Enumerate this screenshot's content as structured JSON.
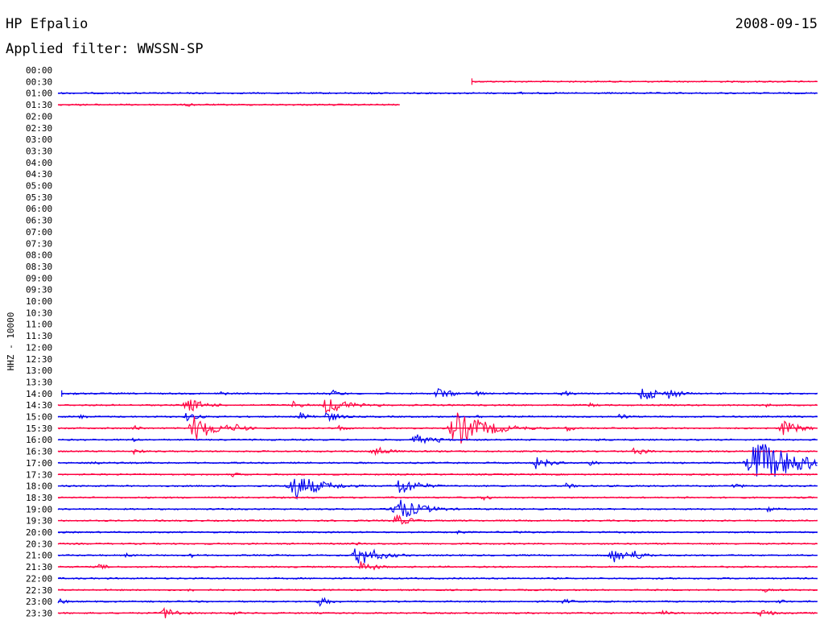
{
  "header": {
    "station": "HP Efpalio",
    "date": "2008-09-15",
    "filter": "Applied filter: WWSSN-SP"
  },
  "chart_data": {
    "type": "line",
    "ylabel": "HHZ - 10000",
    "colors": {
      "even": "#0000ee",
      "odd": "#ff0040"
    },
    "rows": [
      {
        "time": "00:00",
        "start": null,
        "end": null,
        "events": []
      },
      {
        "time": "00:30",
        "start": 0.545,
        "end": 1.0,
        "events": [
          [
            0.94,
            1
          ]
        ]
      },
      {
        "time": "01:00",
        "start": 0.0,
        "end": 1.0,
        "events": [
          [
            0.14,
            1
          ],
          [
            0.41,
            2
          ],
          [
            0.61,
            2
          ],
          [
            0.99,
            1
          ]
        ]
      },
      {
        "time": "01:30",
        "start": 0.0,
        "end": 0.45,
        "events": [
          [
            0.17,
            3
          ]
        ]
      },
      {
        "time": "02:00",
        "start": null,
        "end": null,
        "events": []
      },
      {
        "time": "02:30",
        "start": null,
        "end": null,
        "events": []
      },
      {
        "time": "03:00",
        "start": null,
        "end": null,
        "events": []
      },
      {
        "time": "03:30",
        "start": null,
        "end": null,
        "events": []
      },
      {
        "time": "04:00",
        "start": null,
        "end": null,
        "events": []
      },
      {
        "time": "04:30",
        "start": null,
        "end": null,
        "events": []
      },
      {
        "time": "05:00",
        "start": null,
        "end": null,
        "events": []
      },
      {
        "time": "05:30",
        "start": null,
        "end": null,
        "events": []
      },
      {
        "time": "06:00",
        "start": null,
        "end": null,
        "events": []
      },
      {
        "time": "06:30",
        "start": null,
        "end": null,
        "events": []
      },
      {
        "time": "07:00",
        "start": null,
        "end": null,
        "events": []
      },
      {
        "time": "07:30",
        "start": null,
        "end": null,
        "events": []
      },
      {
        "time": "08:00",
        "start": null,
        "end": null,
        "events": []
      },
      {
        "time": "08:30",
        "start": null,
        "end": null,
        "events": []
      },
      {
        "time": "09:00",
        "start": null,
        "end": null,
        "events": []
      },
      {
        "time": "09:30",
        "start": null,
        "end": null,
        "events": []
      },
      {
        "time": "10:00",
        "start": null,
        "end": null,
        "events": []
      },
      {
        "time": "10:30",
        "start": null,
        "end": null,
        "events": []
      },
      {
        "time": "11:00",
        "start": null,
        "end": null,
        "events": []
      },
      {
        "time": "11:30",
        "start": null,
        "end": null,
        "events": []
      },
      {
        "time": "12:00",
        "start": null,
        "end": null,
        "events": []
      },
      {
        "time": "12:30",
        "start": null,
        "end": null,
        "events": []
      },
      {
        "time": "13:00",
        "start": null,
        "end": null,
        "events": []
      },
      {
        "time": "13:30",
        "start": null,
        "end": null,
        "events": []
      },
      {
        "time": "14:00",
        "start": 0.005,
        "end": 1.0,
        "events": [
          [
            0.02,
            3
          ],
          [
            0.21,
            4
          ],
          [
            0.36,
            5
          ],
          [
            0.5,
            8
          ],
          [
            0.55,
            4
          ],
          [
            0.665,
            4
          ],
          [
            0.77,
            10
          ],
          [
            0.805,
            7
          ]
        ]
      },
      {
        "time": "14:30",
        "start": 0.0,
        "end": 1.0,
        "events": [
          [
            0.17,
            10
          ],
          [
            0.31,
            5
          ],
          [
            0.355,
            12
          ],
          [
            0.37,
            8
          ],
          [
            0.42,
            3
          ],
          [
            0.7,
            3
          ],
          [
            0.93,
            3
          ]
        ]
      },
      {
        "time": "15:00",
        "start": 0.0,
        "end": 1.0,
        "events": [
          [
            0.03,
            3
          ],
          [
            0.17,
            6
          ],
          [
            0.32,
            6
          ],
          [
            0.355,
            7
          ],
          [
            0.55,
            3
          ],
          [
            0.74,
            4
          ]
        ]
      },
      {
        "time": "15:30",
        "start": 0.0,
        "end": 1.0,
        "events": [
          [
            0.1,
            4
          ],
          [
            0.18,
            16
          ],
          [
            0.235,
            6
          ],
          [
            0.37,
            4
          ],
          [
            0.525,
            22
          ],
          [
            0.67,
            4
          ],
          [
            0.955,
            10
          ]
        ]
      },
      {
        "time": "16:00",
        "start": 0.0,
        "end": 1.0,
        "events": [
          [
            0.1,
            3
          ],
          [
            0.47,
            8
          ],
          [
            0.5,
            4
          ],
          [
            0.71,
            3
          ]
        ]
      },
      {
        "time": "16:30",
        "start": 0.0,
        "end": 1.0,
        "events": [
          [
            0.1,
            4
          ],
          [
            0.415,
            8
          ],
          [
            0.76,
            6
          ]
        ]
      },
      {
        "time": "17:00",
        "start": 0.0,
        "end": 1.0,
        "events": [
          [
            0.045,
            4
          ],
          [
            0.63,
            8
          ],
          [
            0.7,
            4
          ],
          [
            0.92,
            30
          ],
          [
            0.98,
            10
          ]
        ]
      },
      {
        "time": "17:30",
        "start": 0.0,
        "end": 1.0,
        "events": [
          [
            0.23,
            3
          ]
        ]
      },
      {
        "time": "18:00",
        "start": 0.0,
        "end": 1.0,
        "events": [
          [
            0.31,
            18
          ],
          [
            0.45,
            12
          ],
          [
            0.67,
            4
          ],
          [
            0.89,
            4
          ]
        ]
      },
      {
        "time": "18:30",
        "start": 0.0,
        "end": 1.0,
        "events": [
          [
            0.56,
            4
          ],
          [
            0.82,
            3
          ]
        ]
      },
      {
        "time": "19:00",
        "start": 0.0,
        "end": 1.0,
        "events": [
          [
            0.445,
            16
          ],
          [
            0.935,
            4
          ]
        ]
      },
      {
        "time": "19:30",
        "start": 0.0,
        "end": 1.0,
        "events": [
          [
            0.445,
            8
          ]
        ]
      },
      {
        "time": "20:00",
        "start": 0.0,
        "end": 1.0,
        "events": [
          [
            0.525,
            3
          ],
          [
            0.6,
            3
          ]
        ]
      },
      {
        "time": "20:30",
        "start": 0.0,
        "end": 1.0,
        "events": [
          [
            0.39,
            3
          ]
        ]
      },
      {
        "time": "21:00",
        "start": 0.0,
        "end": 1.0,
        "events": [
          [
            0.09,
            3
          ],
          [
            0.175,
            3
          ],
          [
            0.395,
            14
          ],
          [
            0.4,
            10
          ],
          [
            0.73,
            10
          ],
          [
            0.755,
            8
          ]
        ]
      },
      {
        "time": "21:30",
        "start": 0.0,
        "end": 1.0,
        "events": [
          [
            0.055,
            4
          ],
          [
            0.4,
            8
          ]
        ]
      },
      {
        "time": "22:00",
        "start": 0.0,
        "end": 1.0,
        "events": []
      },
      {
        "time": "22:30",
        "start": 0.0,
        "end": 1.0,
        "events": [
          [
            0.17,
            3
          ],
          [
            0.93,
            3
          ]
        ]
      },
      {
        "time": "23:00",
        "start": 0.0,
        "end": 1.0,
        "events": [
          [
            0.0,
            4
          ],
          [
            0.345,
            6
          ],
          [
            0.665,
            4
          ],
          [
            0.95,
            3
          ]
        ]
      },
      {
        "time": "23:30",
        "start": 0.0,
        "end": 1.0,
        "events": [
          [
            0.14,
            8
          ],
          [
            0.23,
            3
          ],
          [
            0.795,
            4
          ],
          [
            0.925,
            6
          ]
        ]
      }
    ]
  }
}
